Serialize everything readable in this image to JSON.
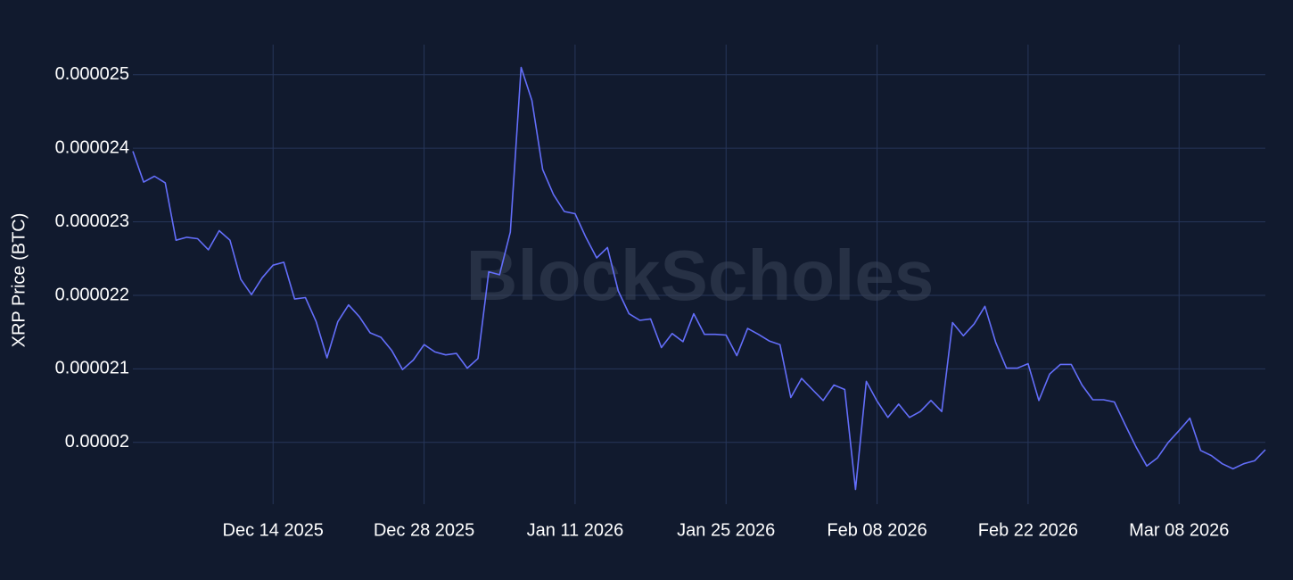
{
  "chart_data": {
    "type": "line",
    "watermark": "BlockScholes",
    "y_label": "XRP Price (BTC)",
    "x": [
      "2025-12-01",
      "2025-12-02",
      "2025-12-03",
      "2025-12-04",
      "2025-12-05",
      "2025-12-06",
      "2025-12-07",
      "2025-12-08",
      "2025-12-09",
      "2025-12-10",
      "2025-12-11",
      "2025-12-12",
      "2025-12-13",
      "2025-12-14",
      "2025-12-15",
      "2025-12-16",
      "2025-12-17",
      "2025-12-18",
      "2025-12-19",
      "2025-12-20",
      "2025-12-21",
      "2025-12-22",
      "2025-12-23",
      "2025-12-24",
      "2025-12-25",
      "2025-12-26",
      "2025-12-27",
      "2025-12-28",
      "2025-12-29",
      "2025-12-30",
      "2025-12-31",
      "2026-01-01",
      "2026-01-02",
      "2026-01-03",
      "2026-01-04",
      "2026-01-05",
      "2026-01-06",
      "2026-01-07",
      "2026-01-08",
      "2026-01-09",
      "2026-01-10",
      "2026-01-11",
      "2026-01-12",
      "2026-01-13",
      "2026-01-14",
      "2026-01-15",
      "2026-01-16",
      "2026-01-17",
      "2026-01-18",
      "2026-01-19",
      "2026-01-20",
      "2026-01-21",
      "2026-01-22",
      "2026-01-23",
      "2026-01-24",
      "2026-01-25",
      "2026-01-26",
      "2026-01-27",
      "2026-01-28",
      "2026-01-29",
      "2026-01-30",
      "2026-01-31",
      "2026-02-01",
      "2026-02-02",
      "2026-02-03",
      "2026-02-04",
      "2026-02-05",
      "2026-02-06",
      "2026-02-07",
      "2026-02-08",
      "2026-02-09",
      "2026-02-10",
      "2026-02-11",
      "2026-02-12",
      "2026-02-13",
      "2026-02-14",
      "2026-02-15",
      "2026-02-16",
      "2026-02-17",
      "2026-02-18",
      "2026-02-19",
      "2026-02-20",
      "2026-02-21",
      "2026-02-22",
      "2026-02-23",
      "2026-02-24",
      "2026-02-25",
      "2026-02-26",
      "2026-02-27",
      "2026-02-28",
      "2026-03-01",
      "2026-03-02",
      "2026-03-03",
      "2026-03-04",
      "2026-03-05",
      "2026-03-06",
      "2026-03-07",
      "2026-03-08",
      "2026-03-09",
      "2026-03-10",
      "2026-03-11",
      "2026-03-12",
      "2026-03-13",
      "2026-03-14",
      "2026-03-15",
      "2026-03-16"
    ],
    "series": [
      {
        "name": "XRP Price (BTC)",
        "color": "#636efa",
        "values": [
          2.396e-05,
          2.354e-05,
          2.362e-05,
          2.353e-05,
          2.275e-05,
          2.279e-05,
          2.277e-05,
          2.262e-05,
          2.288e-05,
          2.275e-05,
          2.222e-05,
          2.201e-05,
          2.224e-05,
          2.241e-05,
          2.245e-05,
          2.195e-05,
          2.197e-05,
          2.164e-05,
          2.115e-05,
          2.164e-05,
          2.187e-05,
          2.171e-05,
          2.149e-05,
          2.143e-05,
          2.125e-05,
          2.099e-05,
          2.112e-05,
          2.133e-05,
          2.123e-05,
          2.119e-05,
          2.121e-05,
          2.101e-05,
          2.114e-05,
          2.232e-05,
          2.228e-05,
          2.286e-05,
          2.51e-05,
          2.465e-05,
          2.371e-05,
          2.337e-05,
          2.314e-05,
          2.311e-05,
          2.279e-05,
          2.251e-05,
          2.265e-05,
          2.206e-05,
          2.175e-05,
          2.166e-05,
          2.168e-05,
          2.129e-05,
          2.148e-05,
          2.137e-05,
          2.175e-05,
          2.147e-05,
          2.147e-05,
          2.146e-05,
          2.118e-05,
          2.155e-05,
          2.147e-05,
          2.138e-05,
          2.133e-05,
          2.061e-05,
          2.087e-05,
          2.072e-05,
          2.057e-05,
          2.078e-05,
          2.072e-05,
          1.936e-05,
          2.083e-05,
          2.056e-05,
          2.034e-05,
          2.052e-05,
          2.034e-05,
          2.042e-05,
          2.057e-05,
          2.042e-05,
          2.163e-05,
          2.145e-05,
          2.161e-05,
          2.185e-05,
          2.136e-05,
          2.101e-05,
          2.101e-05,
          2.107e-05,
          2.057e-05,
          2.093e-05,
          2.106e-05,
          2.106e-05,
          2.078e-05,
          2.058e-05,
          2.058e-05,
          2.055e-05,
          2.024e-05,
          1.994e-05,
          1.968e-05,
          1.979e-05,
          2e-05,
          2.016e-05,
          2.033e-05,
          1.989e-05,
          1.982e-05,
          1.971e-05,
          1.964e-05,
          1.971e-05,
          1.975e-05,
          1.99e-05
        ]
      }
    ],
    "xlim": [
      "2025-12-01",
      "2026-03-16"
    ],
    "xticks": [
      {
        "value": "2025-12-14",
        "label": "Dec 14 2025"
      },
      {
        "value": "2025-12-28",
        "label": "Dec 28 2025"
      },
      {
        "value": "2026-01-11",
        "label": "Jan 11 2026"
      },
      {
        "value": "2026-01-25",
        "label": "Jan 25 2026"
      },
      {
        "value": "2026-02-08",
        "label": "Feb 08 2026"
      },
      {
        "value": "2026-02-22",
        "label": "Feb 22 2026"
      },
      {
        "value": "2026-03-08",
        "label": "Mar 08 2026"
      }
    ],
    "ylim": [
      1.916e-05,
      2.541e-05
    ],
    "yticks": [
      2e-05,
      2.1e-05,
      2.2e-05,
      2.3e-05,
      2.4e-05,
      2.5e-05
    ],
    "grid": true
  }
}
